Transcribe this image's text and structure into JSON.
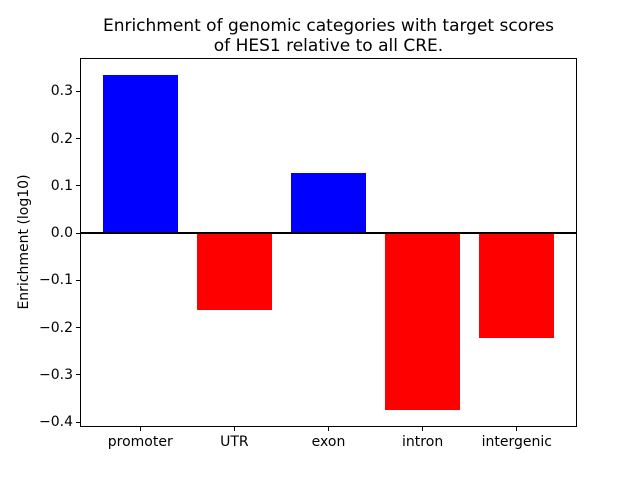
{
  "chart_data": {
    "type": "bar",
    "title": "Enrichment of genomic categories with target scores\nof HES1 relative to all CRE.",
    "xlabel": "",
    "ylabel": "Enrichment (log10)",
    "categories": [
      "promoter",
      "UTR",
      "exon",
      "intron",
      "intergenic"
    ],
    "values": [
      0.335,
      -0.163,
      0.127,
      -0.375,
      -0.222
    ],
    "yticks": [
      0.3,
      0.2,
      0.1,
      0.0,
      -0.1,
      -0.2,
      -0.3,
      -0.4
    ],
    "ytick_labels": [
      "0.3",
      "0.2",
      "0.1",
      "0.0",
      "−0.1",
      "−0.2",
      "−0.3",
      "−0.4"
    ],
    "ylim": [
      -0.4105,
      0.3705
    ],
    "xlim": [
      -0.64,
      4.64
    ],
    "bar_width": 0.8,
    "positive_color": "#0000ff",
    "negative_color": "#ff0000",
    "axis_color": "#000000",
    "background_color": "#ffffff",
    "zero_line": true,
    "grid": false,
    "legend_position": "none"
  }
}
